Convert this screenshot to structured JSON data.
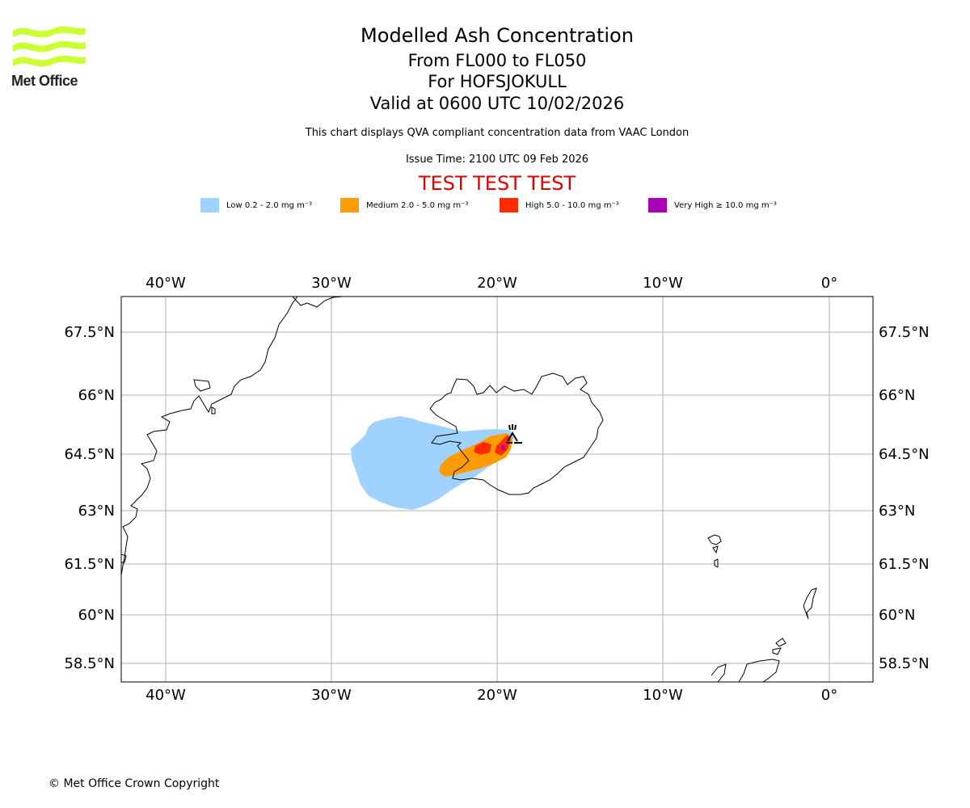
{
  "logo": {
    "text": "Met Office",
    "color": "#ccff33"
  },
  "titles": {
    "main": "Modelled Ash Concentration",
    "levels": "From FL000 to FL050",
    "volcano": "For HOFSJOKULL",
    "valid": "Valid at 0600 UTC 10/02/2026",
    "description": "This chart displays QVA compliant concentration data from VAAC London",
    "issue": "Issue Time: 2100 UTC 09 Feb 2026",
    "test": "TEST TEST TEST"
  },
  "legend": [
    {
      "label": "Low 0.2 - 2.0 mg m⁻³",
      "color": "#a0d2ff"
    },
    {
      "label": "Medium 2.0 - 5.0 mg m⁻³",
      "color": "#ff9c00"
    },
    {
      "label": "High 5.0 - 10.0 mg m⁻³",
      "color": "#ff2a00"
    },
    {
      "label": "Very High  ≥  10.0 mg m⁻³",
      "color": "#a800b4"
    }
  ],
  "map": {
    "lon_labels": [
      "40°W",
      "30°W",
      "20°W",
      "10°W",
      "0°"
    ],
    "lat_labels": [
      "67.5°N",
      "66°N",
      "64.5°N",
      "63°N",
      "61.5°N",
      "60°N",
      "58.5°N"
    ],
    "gridline_color": "#b0b0b0"
  },
  "copyright": "© Met Office Crown Copyright"
}
